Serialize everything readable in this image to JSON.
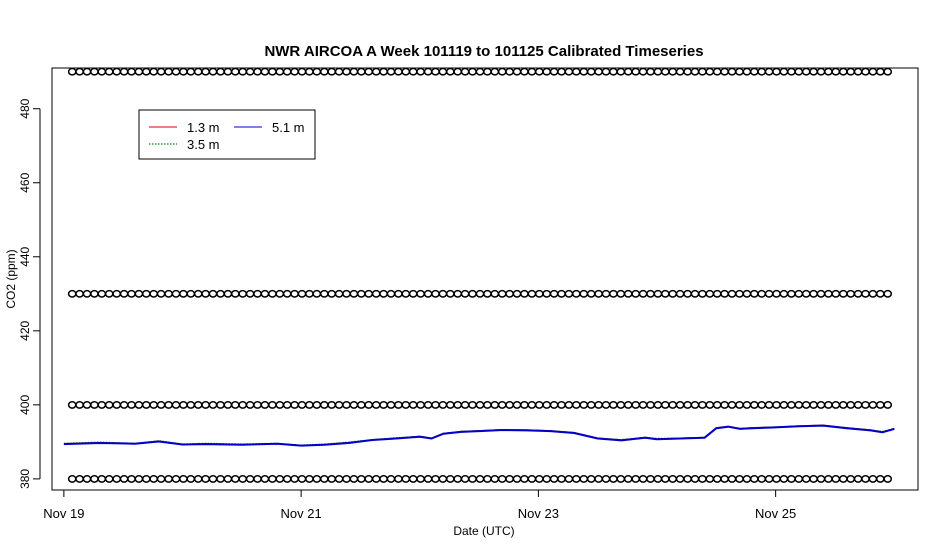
{
  "chart_data": {
    "type": "line",
    "title": "NWR AIRCOA A  Week 101119 to 101125  Calibrated Timeseries",
    "xlabel": "Date (UTC)",
    "ylabel": "CO2 (ppm)",
    "xlim": [
      -0.1,
      7.2
    ],
    "ylim": [
      377,
      491
    ],
    "x_ticks": [
      {
        "value": 0,
        "label": "Nov 19"
      },
      {
        "value": 2,
        "label": "Nov 21"
      },
      {
        "value": 4,
        "label": "Nov 23"
      },
      {
        "value": 6,
        "label": "Nov 25"
      }
    ],
    "y_ticks": [
      380,
      400,
      420,
      440,
      460,
      480
    ],
    "grid": false,
    "legend_position": "top-left",
    "series": [
      {
        "name": "1.3 m",
        "color": "#dd0000",
        "style": "solid",
        "x": [
          0,
          0.3,
          0.6,
          0.8,
          1.0,
          1.2,
          1.5,
          1.8,
          2.0,
          2.2,
          2.4,
          2.6,
          2.8,
          3.0,
          3.1,
          3.2,
          3.35,
          3.5,
          3.7,
          3.9,
          4.1,
          4.3,
          4.5,
          4.7,
          4.9,
          5.0,
          5.2,
          5.4,
          5.5,
          5.6,
          5.7,
          5.8,
          6.0,
          6.2,
          6.4,
          6.6,
          6.8,
          6.9,
          7.0
        ],
        "values": [
          389.5,
          389.8,
          389.5,
          390.2,
          389.3,
          389.5,
          389.3,
          389.5,
          389.0,
          389.3,
          389.8,
          390.5,
          391.0,
          391.5,
          391.0,
          392.3,
          392.8,
          393.0,
          393.3,
          393.2,
          393.0,
          392.5,
          391.0,
          390.5,
          391.2,
          390.8,
          391.0,
          391.2,
          393.8,
          394.2,
          393.6,
          393.8,
          394.0,
          394.3,
          394.5,
          393.8,
          393.2,
          392.7,
          393.6
        ]
      },
      {
        "name": "3.5 m",
        "color": "#008800",
        "style": "dotted",
        "x": [
          0,
          0.3,
          0.6,
          0.8,
          1.0,
          1.2,
          1.5,
          1.8,
          2.0,
          2.2,
          2.4,
          2.6,
          2.8,
          3.0,
          3.1,
          3.2,
          3.35,
          3.5,
          3.7,
          3.9,
          4.1,
          4.3,
          4.5,
          4.7,
          4.9,
          5.0,
          5.2,
          5.4,
          5.5,
          5.6,
          5.7,
          5.8,
          6.0,
          6.2,
          6.4,
          6.6,
          6.8,
          6.9,
          7.0
        ],
        "values": [
          389.6,
          389.9,
          389.6,
          390.3,
          389.4,
          389.6,
          389.4,
          389.6,
          389.1,
          389.4,
          389.9,
          390.6,
          391.1,
          391.4,
          391.0,
          392.2,
          392.8,
          393.0,
          393.3,
          393.2,
          393.0,
          392.5,
          391.0,
          390.6,
          391.2,
          390.9,
          391.0,
          391.2,
          393.7,
          394.1,
          393.6,
          393.8,
          394.0,
          394.2,
          394.4,
          393.8,
          393.2,
          392.8,
          393.6
        ]
      },
      {
        "name": "5.1 m",
        "color": "#0000cc",
        "style": "solid",
        "x": [
          0,
          0.3,
          0.6,
          0.8,
          1.0,
          1.2,
          1.5,
          1.8,
          2.0,
          2.2,
          2.4,
          2.6,
          2.8,
          3.0,
          3.1,
          3.2,
          3.35,
          3.5,
          3.7,
          3.9,
          4.1,
          4.3,
          4.5,
          4.7,
          4.9,
          5.0,
          5.2,
          5.4,
          5.5,
          5.6,
          5.7,
          5.8,
          6.0,
          6.2,
          6.4,
          6.6,
          6.8,
          6.9,
          7.0
        ],
        "values": [
          389.4,
          389.7,
          389.5,
          390.1,
          389.3,
          389.4,
          389.2,
          389.5,
          389.0,
          389.2,
          389.7,
          390.5,
          390.9,
          391.4,
          390.9,
          392.2,
          392.7,
          392.9,
          393.2,
          393.1,
          392.9,
          392.4,
          390.9,
          390.4,
          391.1,
          390.7,
          390.9,
          391.1,
          393.7,
          394.1,
          393.5,
          393.7,
          393.9,
          394.2,
          394.4,
          393.7,
          393.1,
          392.6,
          393.5
        ]
      },
      {
        "name": "",
        "color": "#000000",
        "style": "points",
        "x_start": 0.07,
        "x_end": 7.0,
        "step": 0.0625,
        "values": [
          490
        ]
      },
      {
        "name": "",
        "color": "#000000",
        "style": "points",
        "x_start": 0.07,
        "x_end": 7.0,
        "step": 0.0625,
        "values": [
          430
        ]
      },
      {
        "name": "",
        "color": "#000000",
        "style": "points",
        "x_start": 0.07,
        "x_end": 7.0,
        "step": 0.0625,
        "values": [
          400
        ]
      },
      {
        "name": "",
        "color": "#000000",
        "style": "points",
        "x_start": 0.07,
        "x_end": 7.0,
        "step": 0.0625,
        "values": [
          380
        ]
      }
    ]
  }
}
